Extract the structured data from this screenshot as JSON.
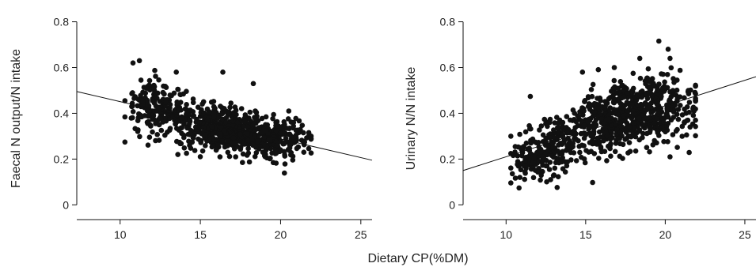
{
  "shared_xlabel": "Dietary CP(%DM)",
  "chart_data": [
    {
      "type": "scatter",
      "title": "",
      "xlabel": "",
      "ylabel": "Faecal N output/N intake",
      "xlim": [
        7.3,
        25.7
      ],
      "ylim": [
        -0.03,
        0.84
      ],
      "xticks": [
        10,
        15,
        20,
        25
      ],
      "yticks": [
        0,
        0.2,
        0.4,
        0.6,
        0.8
      ],
      "xtick_labels": [
        "10",
        "15",
        "20",
        "25"
      ],
      "ytick_labels": [
        "0",
        "0.2",
        "0.4",
        "0.6",
        "0.8"
      ],
      "grid": false,
      "regression_line": {
        "x": [
          7.3,
          25.7
        ],
        "y": [
          0.495,
          0.195
        ]
      },
      "clusters": [
        {
          "x_mean": 11.8,
          "x_sd": 0.75,
          "y_mean": 0.44,
          "y_sd": 0.06,
          "n": 110
        },
        {
          "x_mean": 13.3,
          "x_sd": 0.8,
          "y_mean": 0.39,
          "y_sd": 0.045,
          "n": 130
        },
        {
          "x_mean": 15.8,
          "x_sd": 0.9,
          "y_mean": 0.34,
          "y_sd": 0.05,
          "n": 230
        },
        {
          "x_mean": 17.6,
          "x_sd": 0.9,
          "y_mean": 0.32,
          "y_sd": 0.045,
          "n": 220
        },
        {
          "x_mean": 20.0,
          "x_sd": 0.9,
          "y_mean": 0.29,
          "y_sd": 0.045,
          "n": 200
        }
      ],
      "outliers": [
        [
          10.8,
          0.62
        ],
        [
          11.2,
          0.63
        ],
        [
          13.5,
          0.58
        ],
        [
          18.3,
          0.53
        ],
        [
          17.2,
          0.21
        ],
        [
          13.6,
          0.22
        ],
        [
          16.4,
          0.58
        ],
        [
          21.9,
          0.29
        ]
      ]
    },
    {
      "type": "scatter",
      "title": "",
      "xlabel": "",
      "ylabel": "Urinary N/N intake",
      "xlim": [
        7.3,
        25.7
      ],
      "ylim": [
        -0.03,
        0.84
      ],
      "xticks": [
        10,
        15,
        20,
        25
      ],
      "yticks": [
        0,
        0.2,
        0.4,
        0.6,
        0.8
      ],
      "xtick_labels": [
        "10",
        "15",
        "20",
        "25"
      ],
      "ytick_labels": [
        "0",
        "0.2",
        "0.4",
        "0.6",
        "0.8"
      ],
      "grid": false,
      "regression_line": {
        "x": [
          7.3,
          25.7
        ],
        "y": [
          0.15,
          0.56
        ]
      },
      "clusters": [
        {
          "x_mean": 11.5,
          "x_sd": 0.7,
          "y_mean": 0.2,
          "y_sd": 0.05,
          "n": 110
        },
        {
          "x_mean": 13.3,
          "x_sd": 0.8,
          "y_mean": 0.27,
          "y_sd": 0.065,
          "n": 140
        },
        {
          "x_mean": 16.0,
          "x_sd": 0.8,
          "y_mean": 0.37,
          "y_sd": 0.07,
          "n": 230
        },
        {
          "x_mean": 18.0,
          "x_sd": 0.9,
          "y_mean": 0.4,
          "y_sd": 0.07,
          "n": 210
        },
        {
          "x_mean": 20.0,
          "x_sd": 0.9,
          "y_mean": 0.43,
          "y_sd": 0.08,
          "n": 200
        }
      ],
      "outliers": [
        [
          18.4,
          0.64
        ],
        [
          20.3,
          0.64
        ],
        [
          16.8,
          0.6
        ],
        [
          14.8,
          0.58
        ],
        [
          20.3,
          0.21
        ],
        [
          12.8,
          0.11
        ],
        [
          21.8,
          0.41
        ],
        [
          10.3,
          0.3
        ]
      ]
    }
  ]
}
